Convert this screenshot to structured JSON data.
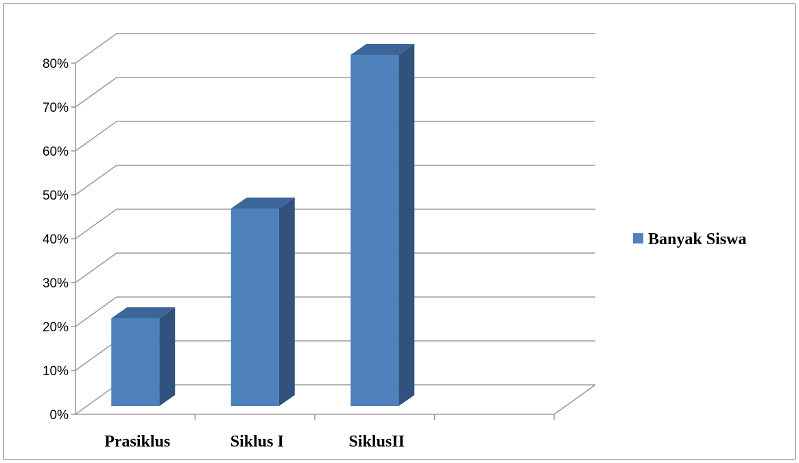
{
  "chart_data": {
    "type": "bar",
    "style": "3d-column",
    "categories": [
      "Prasiklus",
      "Siklus I",
      "SiklusII"
    ],
    "series": [
      {
        "name": "Banyak Siswa",
        "values": [
          20,
          45,
          80
        ],
        "color": "#4f81bd"
      }
    ],
    "y_ticks": [
      "0%",
      "10%",
      "20%",
      "30%",
      "40%",
      "50%",
      "60%",
      "70%",
      "80%"
    ],
    "ylim": [
      0,
      80
    ],
    "y_unit": "%",
    "grid": true,
    "legend_position": "right"
  },
  "colors": {
    "bar_front": "#4f81bd",
    "bar_side": "#30527c",
    "bar_top": "#3c669a",
    "gridline": "#9b9b9b",
    "frame": "#8c8c8c"
  }
}
